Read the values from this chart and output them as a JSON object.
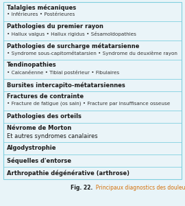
{
  "title_bold": "Fig. 22.",
  "title_rest": "  Principaux diagnostics des douleurs mécaniques.",
  "bg_color": "#e8f4f8",
  "table_bg": "#eaf4f8",
  "separator_color": "#7fcfdf",
  "header_color": "#1a1a1a",
  "item_color": "#333333",
  "caption_bold_color": "#1a1a1a",
  "caption_rest_color": "#d4700a",
  "rows": [
    {
      "header": "Talalgies mécaniques",
      "items": "• Inférieures • Postérieures"
    },
    {
      "header": "Pathologies du premier rayon",
      "items": "• Hallux valgus • Hallux rigidus • Sésamoïdopathies"
    },
    {
      "header": "Pathologies de surcharge métatarsienne",
      "items": "• Syndrome sous-capitométatarsien • Syndrome du deuxième rayon"
    },
    {
      "header": "Tendinopathies",
      "items": "• Calcanéenne • Tibial postérieur • Fibulaires"
    },
    {
      "header": "Bursites intercapito-métatarsiennes",
      "items": null
    },
    {
      "header": "Fractures de contrainte",
      "items": "• Fracture de fatigue (os sain) • Fracture par insuffisance osseuse"
    },
    {
      "header": "Pathologies des orteils",
      "items": null
    },
    {
      "header": "Névrome de Morton",
      "items": null,
      "extra_line": "Et autres syndromes canalaires"
    },
    {
      "header": "Algodystrophie",
      "items": null
    },
    {
      "header": "Séquelles d'entorse",
      "items": null
    },
    {
      "header": "Arthropathie dégénérative (arthrose)",
      "items": null
    }
  ],
  "header_fontsize": 6.0,
  "item_fontsize": 5.2,
  "caption_fontsize": 5.5
}
